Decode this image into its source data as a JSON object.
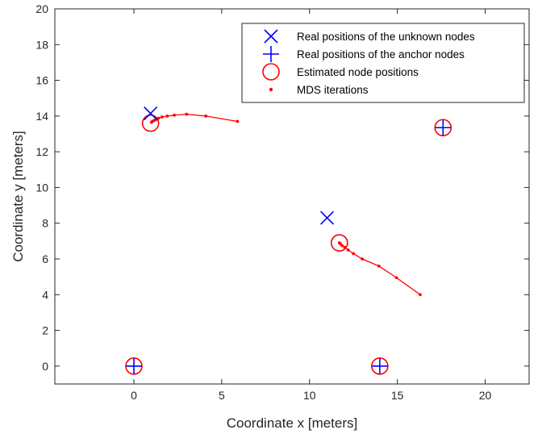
{
  "chart_data": {
    "type": "scatter",
    "title": "",
    "xlabel": "Coordinate x [meters]",
    "ylabel": "Coordinate y [meters]",
    "xlim": [
      -4.5,
      22.5
    ],
    "ylim": [
      -1,
      20
    ],
    "xticks": [
      0,
      5,
      10,
      15,
      20
    ],
    "yticks": [
      0,
      2,
      4,
      6,
      8,
      10,
      12,
      14,
      16,
      18,
      20
    ],
    "grid": false,
    "legend_position": "top-right",
    "series": [
      {
        "name": "Real positions of the unknown nodes",
        "marker": "x",
        "color": "#0000ff",
        "points": [
          [
            0.95,
            14.15
          ],
          [
            11.0,
            8.3
          ]
        ]
      },
      {
        "name": "Real positions of the anchor nodes",
        "marker": "plus",
        "color": "#0000ff",
        "points": [
          [
            0,
            0
          ],
          [
            14.0,
            0
          ],
          [
            17.6,
            13.35
          ]
        ]
      },
      {
        "name": "Estimated node positions",
        "marker": "circle",
        "color": "#ff0000",
        "points": [
          [
            0.95,
            13.6
          ],
          [
            11.7,
            6.9
          ],
          [
            0,
            0
          ],
          [
            14.0,
            0
          ],
          [
            17.6,
            13.35
          ]
        ]
      },
      {
        "name": "MDS iterations",
        "marker": "dot",
        "color": "#ff0000",
        "paths": [
          [
            [
              5.9,
              13.7
            ],
            [
              4.1,
              14.0
            ],
            [
              3.0,
              14.1
            ],
            [
              2.3,
              14.05
            ],
            [
              1.9,
              14.0
            ],
            [
              1.6,
              13.95
            ],
            [
              1.4,
              13.88
            ],
            [
              1.25,
              13.8
            ],
            [
              1.15,
              13.75
            ],
            [
              1.05,
              13.7
            ],
            [
              1.0,
              13.65
            ]
          ],
          [
            [
              16.3,
              4.0
            ],
            [
              14.95,
              4.95
            ],
            [
              13.95,
              5.6
            ],
            [
              13.0,
              6.0
            ],
            [
              12.5,
              6.3
            ],
            [
              12.2,
              6.5
            ],
            [
              12.0,
              6.65
            ],
            [
              11.85,
              6.75
            ],
            [
              11.75,
              6.85
            ],
            [
              11.7,
              6.9
            ]
          ]
        ]
      }
    ]
  }
}
